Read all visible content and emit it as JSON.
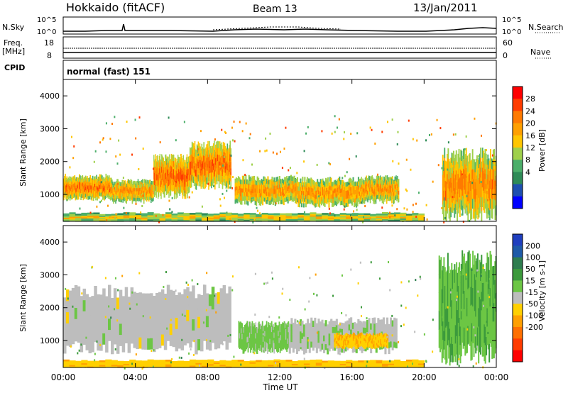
{
  "header": {
    "radar": "Hokkaido (fitACF)",
    "beam": "Beam 13",
    "date": "13/Jan/2011"
  },
  "noise_panel": {
    "left_label": "N.Sky",
    "right_label": "N.Search",
    "left_ticks": [
      "10^5",
      "10^0"
    ],
    "right_ticks": [
      "10^5",
      "10^0"
    ]
  },
  "freq_panel": {
    "left_label_line1": "Freq.",
    "left_label_line2": "[MHz]",
    "right_label": "Nave",
    "left_ticks": [
      "18",
      "8"
    ],
    "right_ticks": [
      "60",
      "0"
    ]
  },
  "cpid_panel": {
    "label": "CPID",
    "mode": "normal (fast) 151"
  },
  "axes": {
    "ylabel": "Slant Range [km]",
    "xlabel": "Time UT",
    "y_ticks": [
      "4000",
      "3000",
      "2000",
      "1000"
    ],
    "x_ticks": [
      "00:00",
      "04:00",
      "08:00",
      "12:00",
      "16:00",
      "20:00",
      "00:00"
    ]
  },
  "power_colorbar": {
    "title": "Power [dB]",
    "labels": [
      "28",
      "24",
      "20",
      "16",
      "12",
      "8",
      "4"
    ],
    "colors": [
      "#ff0000",
      "#ff3c00",
      "#ff7a00",
      "#ffa000",
      "#ffc600",
      "#9fd04b",
      "#4caf6a",
      "#2e8b57",
      "#1e4fb0",
      "#0000ff"
    ]
  },
  "velocity_colorbar": {
    "title": "Velocity [m s-1]",
    "labels": [
      "200",
      "100",
      "50",
      "15",
      "-15",
      "-50",
      "-100",
      "-200"
    ],
    "colors": [
      "#1f3fbf",
      "#1e5aa8",
      "#2e7d4f",
      "#3c9a3c",
      "#6cc644",
      "#bdbdbd",
      "#ffd000",
      "#ffa000",
      "#ff7000",
      "#ff3c00",
      "#ff0000"
    ]
  },
  "chart_data": {
    "type": "heatmap",
    "time_range_hours": [
      0,
      24
    ],
    "range_limits_km": [
      180,
      4500
    ],
    "power_db_range": [
      0,
      30
    ],
    "velocity_range": [
      -250,
      250
    ],
    "power_bands": [
      {
        "t0": 0.0,
        "t1": 2.6,
        "r0": 900,
        "r1": 1550,
        "p": 24
      },
      {
        "t0": 2.6,
        "t1": 5.0,
        "r0": 800,
        "r1": 1400,
        "p": 22
      },
      {
        "t0": 5.0,
        "t1": 7.0,
        "r0": 1000,
        "r1": 2100,
        "p": 25
      },
      {
        "t0": 7.0,
        "t1": 9.3,
        "r0": 1300,
        "r1": 2500,
        "p": 25
      },
      {
        "t0": 9.5,
        "t1": 13.0,
        "r0": 750,
        "r1": 1500,
        "p": 22
      },
      {
        "t0": 13.0,
        "t1": 16.5,
        "r0": 700,
        "r1": 1450,
        "p": 22
      },
      {
        "t0": 16.5,
        "t1": 18.6,
        "r0": 800,
        "r1": 1500,
        "p": 22
      },
      {
        "t0": 21.0,
        "t1": 24.0,
        "r0": 400,
        "r1": 2200,
        "p": 23
      },
      {
        "t0": 0.0,
        "t1": 20.0,
        "r0": 180,
        "r1": 430,
        "p": 18
      }
    ],
    "velocity_bands": [
      {
        "t0": 0.0,
        "t1": 9.3,
        "r0": 800,
        "r1": 2500,
        "v": 0
      },
      {
        "t0": 9.7,
        "t1": 12.5,
        "r0": 700,
        "r1": 1500,
        "v": 40
      },
      {
        "t0": 12.5,
        "t1": 18.5,
        "r0": 700,
        "r1": 1600,
        "v": 10
      },
      {
        "t0": 15.0,
        "t1": 18.0,
        "r0": 800,
        "r1": 1200,
        "v": -60
      },
      {
        "t0": 20.8,
        "t1": 24.0,
        "r0": 600,
        "r1": 3400,
        "v": 60
      },
      {
        "t0": 0.0,
        "t1": 20.0,
        "r0": 180,
        "r1": 400,
        "v": -50
      }
    ]
  }
}
